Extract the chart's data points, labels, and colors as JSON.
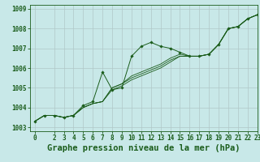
{
  "title": "Graphe pression niveau de la mer (hPa)",
  "bg_color": "#c8e8e8",
  "grid_color": "#b0c8c8",
  "line_color": "#1a5c1a",
  "marker_color": "#1a5c1a",
  "xlim": [
    -0.5,
    23
  ],
  "ylim": [
    1002.8,
    1009.2
  ],
  "xticks": [
    0,
    2,
    3,
    4,
    5,
    6,
    7,
    8,
    9,
    10,
    11,
    12,
    13,
    14,
    15,
    16,
    17,
    18,
    19,
    20,
    21,
    22,
    23
  ],
  "yticks": [
    1003,
    1004,
    1005,
    1006,
    1007,
    1008,
    1009
  ],
  "series": [
    [
      1003.3,
      1003.6,
      1003.6,
      1003.5,
      1003.6,
      1004.1,
      1004.3,
      1005.8,
      1004.9,
      1005.0,
      1006.6,
      1007.1,
      1007.3,
      1007.1,
      1007.0,
      1006.8,
      1006.6,
      1006.6,
      1006.7,
      1007.2,
      1008.0,
      1008.1,
      1008.5,
      1008.7
    ],
    [
      1003.3,
      1003.6,
      1003.6,
      1003.5,
      1003.6,
      1004.0,
      1004.2,
      1004.3,
      1005.0,
      1005.2,
      1005.6,
      1005.8,
      1006.0,
      1006.2,
      1006.5,
      1006.7,
      1006.6,
      1006.6,
      1006.7,
      1007.2,
      1008.0,
      1008.1,
      1008.5,
      1008.7
    ],
    [
      1003.3,
      1003.6,
      1003.6,
      1003.5,
      1003.6,
      1004.0,
      1004.2,
      1004.3,
      1005.0,
      1005.2,
      1005.5,
      1005.7,
      1005.9,
      1006.1,
      1006.4,
      1006.6,
      1006.6,
      1006.6,
      1006.7,
      1007.2,
      1008.0,
      1008.1,
      1008.5,
      1008.7
    ],
    [
      1003.3,
      1003.6,
      1003.6,
      1003.5,
      1003.6,
      1004.0,
      1004.2,
      1004.3,
      1004.9,
      1005.1,
      1005.4,
      1005.6,
      1005.8,
      1006.0,
      1006.3,
      1006.6,
      1006.6,
      1006.6,
      1006.7,
      1007.2,
      1008.0,
      1008.1,
      1008.5,
      1008.7
    ]
  ],
  "title_fontsize": 7.5,
  "tick_fontsize": 5.5
}
